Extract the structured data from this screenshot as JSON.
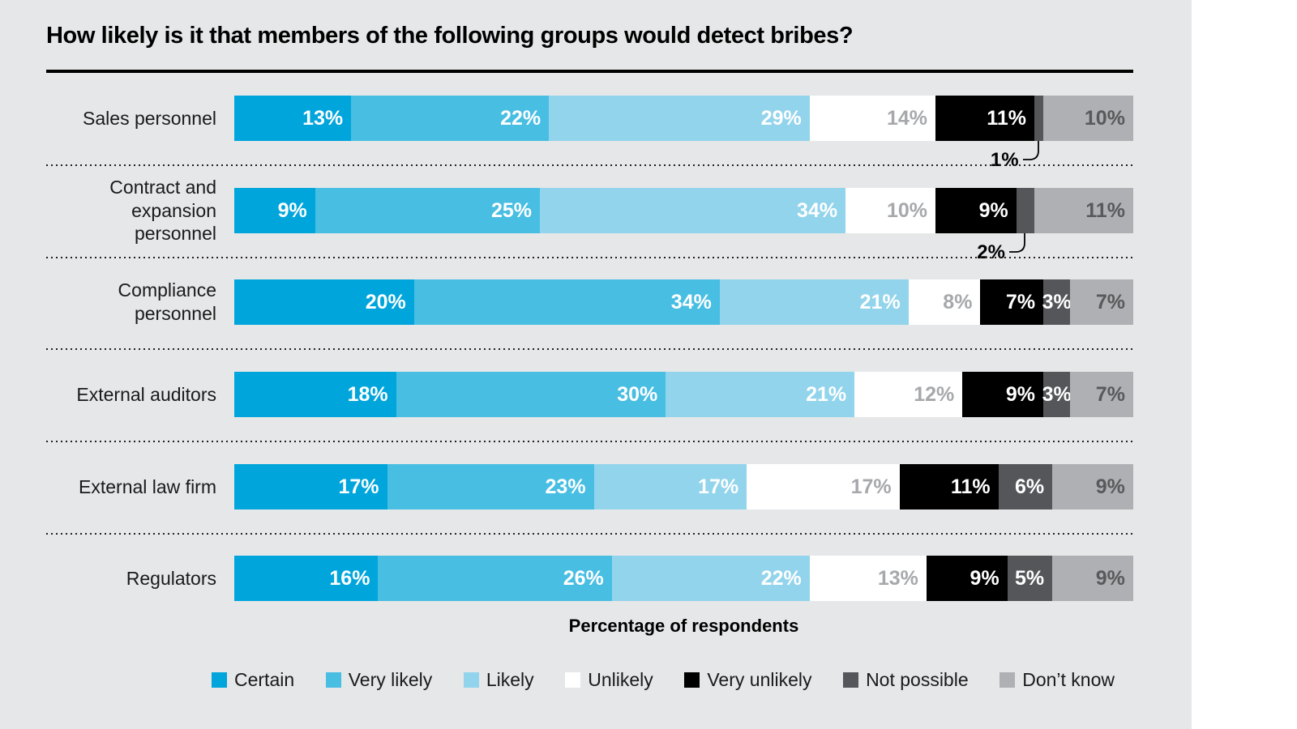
{
  "page": {
    "background": "#FFFFFF",
    "panel_background": "#E6E7E8"
  },
  "chart_data": {
    "type": "bar",
    "variant": "horizontal-stacked",
    "title": "How likely is it that members of the following groups would detect bribes?",
    "xlabel": "Percentage of respondents",
    "unit": "%",
    "xlim": [
      0,
      100
    ],
    "grid": false,
    "legend_position": "bottom",
    "categories": [
      "Sales personnel",
      "Contract and expansion personnel",
      "Compliance personnel",
      "External auditors",
      "External law firm",
      "Regulators"
    ],
    "categories_display": [
      "Sales personnel",
      "Contract and\nexpansion personnel",
      "Compliance\npersonnel",
      "External auditors",
      "External law firm",
      "Regulators"
    ],
    "series": [
      {
        "name": "Certain",
        "color": "#00A5DC",
        "values": [
          13,
          9,
          20,
          18,
          17,
          16
        ]
      },
      {
        "name": "Very likely",
        "color": "#48BEE3",
        "values": [
          22,
          25,
          34,
          30,
          23,
          26
        ]
      },
      {
        "name": "Likely",
        "color": "#92D4EC",
        "values": [
          29,
          34,
          21,
          21,
          17,
          22
        ]
      },
      {
        "name": "Unlikely",
        "color": "#FFFFFF",
        "values": [
          14,
          10,
          8,
          12,
          17,
          13
        ]
      },
      {
        "name": "Very unlikely",
        "color": "#000000",
        "values": [
          11,
          9,
          7,
          9,
          11,
          9
        ]
      },
      {
        "name": "Not possible",
        "color": "#54565A",
        "values": [
          1,
          2,
          3,
          3,
          6,
          5
        ]
      },
      {
        "name": "Don’t know",
        "color": "#AEB0B3",
        "values": [
          10,
          11,
          7,
          7,
          9,
          9
        ]
      }
    ],
    "value_text_colors": [
      "#FFFFFF",
      "#FFFFFF",
      "#FFFFFF",
      "#A6A8AB",
      "#FFFFFF",
      "#FFFFFF",
      "#58595B"
    ],
    "callout_max": 2,
    "callout_text_color": "#000000",
    "row_tops": [
      20,
      134,
      247,
      361,
      475,
      588
    ],
    "separator_tops": [
      105,
      219,
      332,
      446,
      560
    ]
  }
}
